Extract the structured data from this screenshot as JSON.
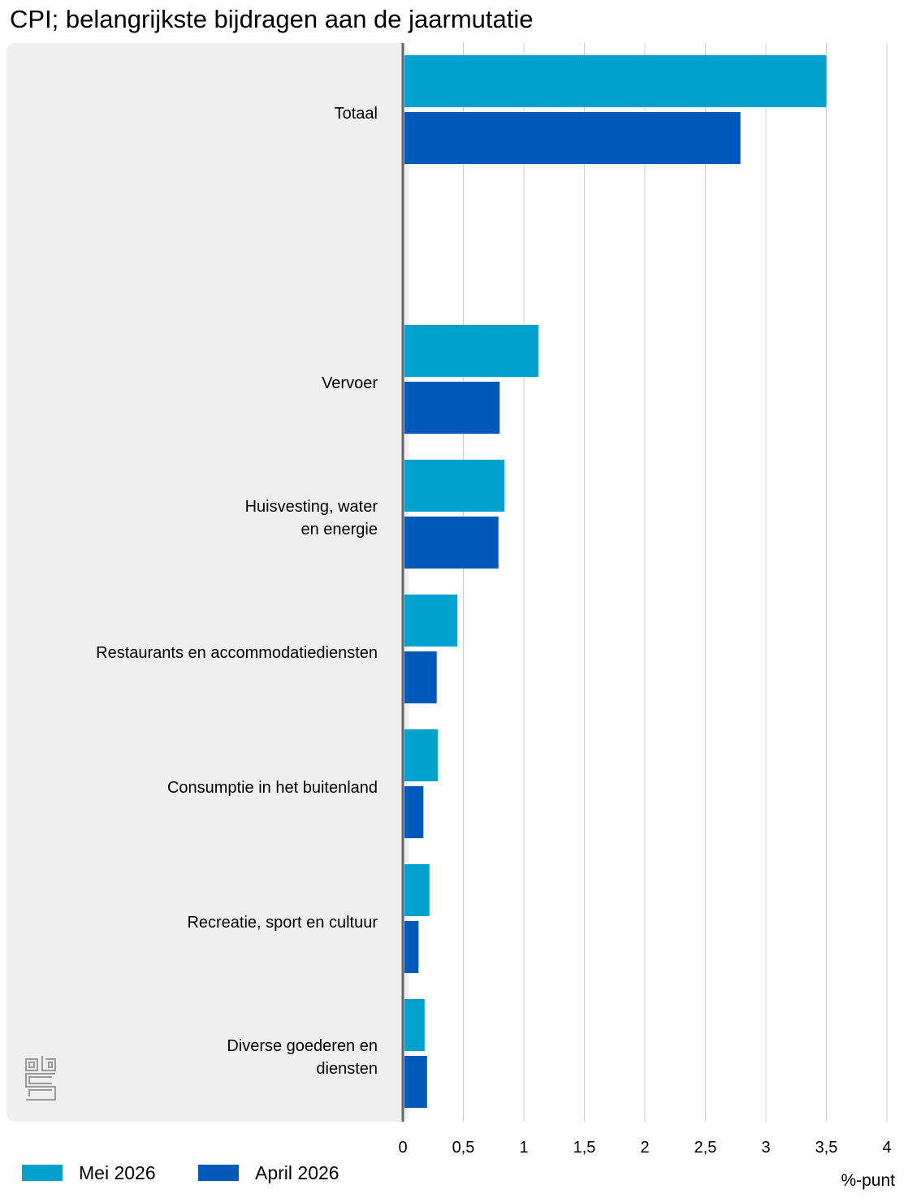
{
  "title": "CPI; belangrijkste bijdragen aan de jaarmutatie",
  "chart_data": {
    "type": "bar",
    "orientation": "horizontal",
    "title": "CPI; belangrijkste bijdragen aan de jaarmutatie",
    "xlabel": "%-punt",
    "ylabel": "",
    "xlim": [
      0,
      4
    ],
    "ticks": [
      "0",
      "0,5",
      "1",
      "1,5",
      "2",
      "2,5",
      "3",
      "3,5",
      "4"
    ],
    "tick_values": [
      0,
      0.5,
      1,
      1.5,
      2,
      2.5,
      3,
      3.5,
      4
    ],
    "grid": true,
    "legend_position": "bottom-left",
    "categories": [
      [
        "Totaal"
      ],
      [
        ""
      ],
      [
        "Vervoer"
      ],
      [
        "Huisvesting, water",
        "en energie"
      ],
      [
        "Restaurants en accommodatiediensten"
      ],
      [
        "Consumptie in het buitenland"
      ],
      [
        "Recreatie, sport en cultuur"
      ],
      [
        "Diverse goederen en",
        "diensten"
      ]
    ],
    "series": [
      {
        "name": "Mei 2026",
        "color": "#00a1cd",
        "values": [
          3.5,
          null,
          1.12,
          0.84,
          0.45,
          0.29,
          0.22,
          0.18
        ]
      },
      {
        "name": "April 2026",
        "color": "#0058b8",
        "values": [
          2.79,
          null,
          0.8,
          0.79,
          0.28,
          0.17,
          0.13,
          0.2
        ]
      }
    ]
  },
  "colors": {
    "panel": "#efefef",
    "grid": "#cfcfcf",
    "axis": "#666666",
    "logo": "#9a9a9a"
  },
  "logo_icon": "cbs-logo-icon"
}
